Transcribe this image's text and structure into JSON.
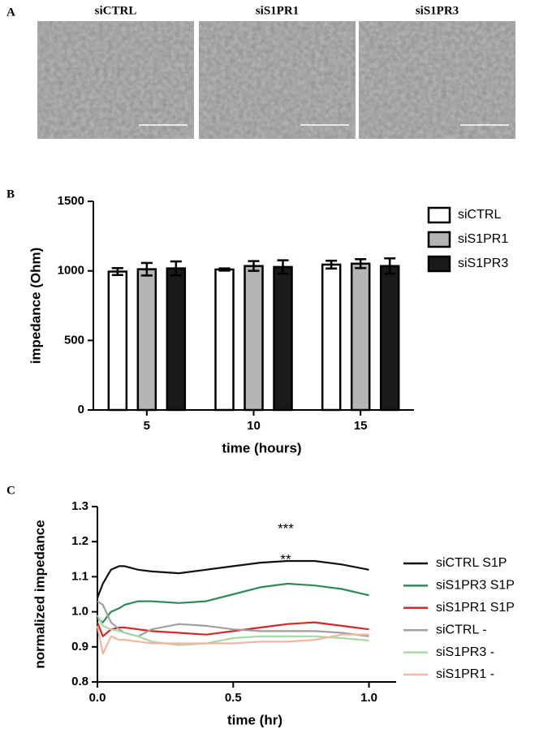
{
  "figure": {
    "panel_a": {
      "label": "A",
      "images": [
        "siCTRL",
        "siS1PR1",
        "siS1PR3"
      ]
    }
  },
  "chart_data": [
    {
      "type": "bar",
      "panel_label": "B",
      "x_label": "time (hours)",
      "y_label": "impedance (Ohm)",
      "categories": [
        "5",
        "10",
        "15"
      ],
      "series": [
        {
          "name": "siCTRL",
          "color": "#ffffff",
          "values": [
            995,
            1010,
            1045
          ],
          "errors": [
            25,
            8,
            28
          ]
        },
        {
          "name": "siS1PR1",
          "color": "#b5b5b5",
          "values": [
            1012,
            1035,
            1052
          ],
          "errors": [
            45,
            35,
            32
          ]
        },
        {
          "name": "siS1PR3",
          "color": "#1a1a1a",
          "values": [
            1018,
            1028,
            1035
          ],
          "errors": [
            50,
            48,
            55
          ]
        }
      ],
      "ylim": [
        0,
        1500
      ],
      "yticks": [
        0,
        500,
        1000,
        1500
      ]
    },
    {
      "type": "line",
      "panel_label": "C",
      "x_label": "time (hr)",
      "y_label": "normalized impedance",
      "x": [
        0,
        0.02,
        0.05,
        0.08,
        0.1,
        0.15,
        0.2,
        0.3,
        0.4,
        0.5,
        0.6,
        0.7,
        0.8,
        0.9,
        1.0
      ],
      "series": [
        {
          "name": "siCTRL S1P",
          "color": "#111111",
          "values": [
            1.04,
            1.08,
            1.12,
            1.13,
            1.13,
            1.12,
            1.115,
            1.11,
            1.12,
            1.13,
            1.14,
            1.145,
            1.145,
            1.135,
            1.12
          ]
        },
        {
          "name": "siS1PR3 S1P",
          "color": "#2e8b57",
          "values": [
            0.98,
            0.97,
            1.0,
            1.01,
            1.02,
            1.03,
            1.03,
            1.025,
            1.03,
            1.05,
            1.07,
            1.08,
            1.075,
            1.065,
            1.047
          ]
        },
        {
          "name": "siS1PR1 S1P",
          "color": "#d62728",
          "values": [
            0.97,
            0.93,
            0.95,
            0.955,
            0.955,
            0.95,
            0.945,
            0.94,
            0.935,
            0.945,
            0.955,
            0.965,
            0.97,
            0.96,
            0.95
          ]
        },
        {
          "name": "siCTRL -",
          "color": "#a0a0a0",
          "values": [
            1.03,
            1.02,
            0.97,
            0.95,
            0.94,
            0.93,
            0.95,
            0.965,
            0.96,
            0.95,
            0.945,
            0.945,
            0.945,
            0.94,
            0.93
          ]
        },
        {
          "name": "siS1PR3 -",
          "color": "#a8d8a8",
          "values": [
            0.99,
            0.96,
            0.95,
            0.945,
            0.94,
            0.93,
            0.915,
            0.905,
            0.91,
            0.925,
            0.93,
            0.93,
            0.93,
            0.925,
            0.918
          ]
        },
        {
          "name": "siS1PR1 -",
          "color": "#f4b4a0",
          "values": [
            0.96,
            0.88,
            0.93,
            0.92,
            0.92,
            0.915,
            0.91,
            0.91,
            0.91,
            0.91,
            0.915,
            0.915,
            0.92,
            0.935,
            0.935
          ]
        }
      ],
      "annotations": [
        "***",
        "**"
      ],
      "xlim": [
        0,
        1.1
      ],
      "xticks": [
        {
          "value": 0,
          "label": "0.0"
        },
        0.5,
        {
          "value": 1,
          "label": "1.0"
        }
      ],
      "ylim": [
        0.8,
        1.3
      ],
      "yticks": [
        0.8,
        0.9,
        {
          "value": 1,
          "label": "1.0"
        },
        1.1,
        1.2,
        1.3
      ]
    }
  ]
}
